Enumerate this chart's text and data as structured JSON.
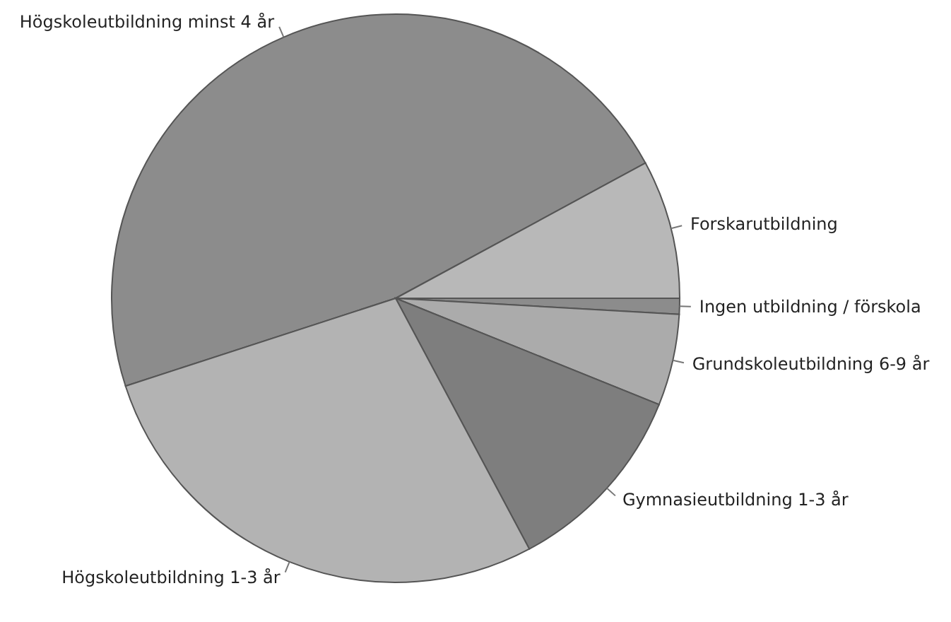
{
  "chart_data": {
    "type": "pie",
    "categories": [
      "Högskoleutbildning minst 4 år",
      "Forskarutbildning",
      "Ingen utbildning / förskola",
      "Grundskoleutbildning 6-9 år",
      "Gymnasieutbildning 1-3 år",
      "Högskoleutbildning 1-3 år"
    ],
    "values": [
      47.1,
      7.9,
      0.9,
      5.2,
      11.1,
      27.8
    ],
    "colors": [
      "#8c8c8c",
      "#b8b8b8",
      "#8c8c8c",
      "#ababab",
      "#7e7e7e",
      "#b3b3b3"
    ]
  }
}
